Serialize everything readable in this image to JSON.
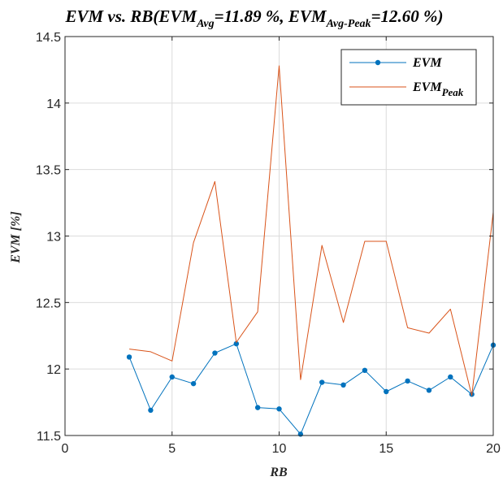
{
  "chart_data": {
    "type": "line",
    "title": {
      "prefix": "EVM vs. RB(EVM",
      "sub1": "Avg",
      "mid": "=11.89 %, EVM",
      "sub2": "Avg-Peak",
      "suffix": "=12.60 %)"
    },
    "xlabel": "RB",
    "ylabel": "EVM [%]",
    "xlim": [
      0,
      20
    ],
    "ylim": [
      11.5,
      14.5
    ],
    "xticks": [
      "0",
      "5",
      "10",
      "15",
      "20"
    ],
    "yticks": [
      "11.5",
      "12",
      "12.5",
      "13",
      "13.5",
      "14",
      "14.5"
    ],
    "grid": true,
    "legend_position": "top-right",
    "x": [
      3,
      4,
      5,
      6,
      7,
      8,
      9,
      10,
      11,
      12,
      13,
      14,
      15,
      16,
      17,
      18,
      19,
      20
    ],
    "series": [
      {
        "name": "EVM",
        "color": "#0072BD",
        "marker": "dot",
        "values": [
          12.09,
          11.69,
          11.94,
          11.89,
          12.12,
          12.19,
          11.71,
          11.7,
          11.51,
          11.9,
          11.88,
          11.99,
          11.83,
          11.91,
          11.84,
          11.94,
          11.81,
          12.18
        ]
      },
      {
        "name_main": "EVM",
        "name_sub": "Peak",
        "color": "#D95319",
        "marker": "none",
        "values": [
          12.15,
          12.13,
          12.06,
          12.95,
          13.41,
          12.2,
          12.43,
          14.28,
          11.92,
          12.93,
          12.35,
          12.96,
          12.96,
          12.31,
          12.27,
          12.45,
          11.8,
          13.18
        ]
      }
    ]
  }
}
